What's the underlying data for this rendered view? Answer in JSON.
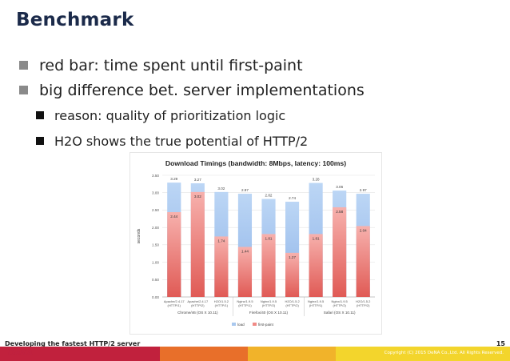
{
  "slide": {
    "title": "Benchmark",
    "bullets": [
      "red bar: time spent until first-paint",
      "big difference bet. server implementations"
    ],
    "sub_bullets": [
      "reason: quality of prioritization logic",
      "H2O shows the true potential of HTTP/2"
    ]
  },
  "footer": {
    "text": "Developing the fastest HTTP/2 server",
    "page": "15",
    "logo": "DeNA",
    "copyright": "Copyright (C) 2015 DeNA Co.,Ltd. All Rights Reserved.",
    "bar_colors": [
      "#c1213d",
      "#e86f2a",
      "#f1b32a",
      "#f3d52c"
    ]
  },
  "chart_data": {
    "type": "bar",
    "title": "Download Timings (bandwidth: 8Mbps, latency: 100ms)",
    "ylabel": "seconds",
    "ylim": [
      0,
      3.5
    ],
    "yticks": [
      "0.00",
      "0.50",
      "1.00",
      "1.50",
      "2.00",
      "2.50",
      "3.00",
      "3.50"
    ],
    "categories": [
      "Apache/2.4.17 (HTTP/1)",
      "Apache/2.4.17 (HTTP/2)",
      "H2O/1.5.2 (HTTP/1)",
      "Nginx/1.9.5 (HTTP/1)",
      "Nginx/1.9.5 (HTTP/2)",
      "H2O/1.5.2 (HTTP/2)",
      "Nginx/1.9.5 (HTTP/1)",
      "Nginx/1.9.5 (HTTP/2)",
      "H2O/1.5.2 (HTTP/2)"
    ],
    "groups": [
      "Chrome/46 (OS X 10.11)",
      "Firefox/40 (OS X 10.11)",
      "Safari (OS X 10.11)"
    ],
    "series": [
      {
        "name": "load",
        "color": "#a9c8ee",
        "values": [
          3.29,
          3.27,
          3.02,
          2.97,
          2.82,
          2.74,
          3.28,
          3.06,
          2.97
        ]
      },
      {
        "name": "first-paint",
        "color": "#f08a86",
        "values": [
          2.44,
          3.02,
          1.74,
          1.44,
          1.81,
          1.27,
          1.81,
          2.58,
          2.04
        ]
      }
    ],
    "load_labels": [
      "3.29",
      "3.27",
      "3.02",
      "2.97",
      "2.82",
      "2.74",
      "3.28",
      "3.06",
      "2.97"
    ],
    "paint_labels": [
      "2.44",
      "3.02",
      "1.74",
      "1.44",
      "1.81",
      "1.27",
      "1.81",
      "2.58",
      "2.04"
    ]
  }
}
